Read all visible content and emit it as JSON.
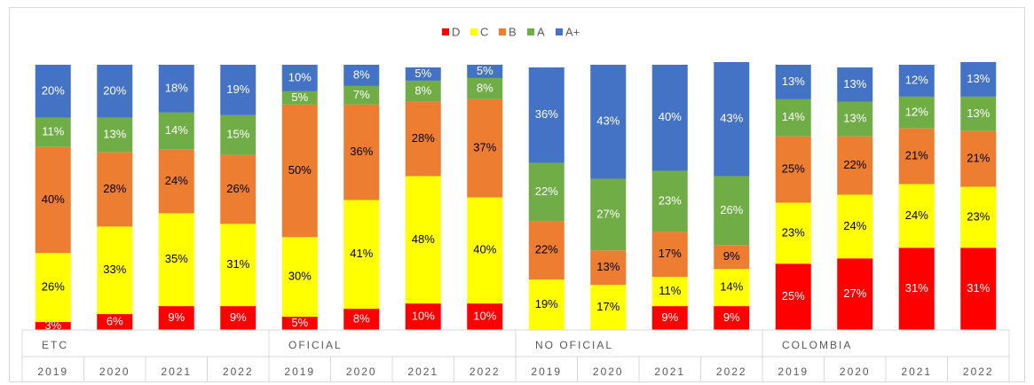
{
  "chart_data": {
    "type": "stacked_bar",
    "categories": [
      "2019",
      "2020",
      "2021",
      "2022",
      "2019",
      "2020",
      "2021",
      "2022",
      "2019",
      "2020",
      "2021",
      "2022",
      "2019",
      "2020",
      "2021",
      "2022"
    ],
    "groups": [
      {
        "label": "ETC",
        "size": 4
      },
      {
        "label": "OFICIAL",
        "size": 4
      },
      {
        "label": "NO OFICIAL",
        "size": 4
      },
      {
        "label": "COLOMBIA",
        "size": 4
      }
    ],
    "ylim": [
      0,
      100
    ],
    "legend": "top",
    "series": [
      {
        "name": "D",
        "color": "#ff0000",
        "label_color": "#ffffff",
        "values": [
          3,
          6,
          9,
          9,
          5,
          8,
          10,
          10,
          0,
          0,
          9,
          9,
          25,
          27,
          31,
          31
        ],
        "value_labels": [
          "3%",
          "6%",
          "9%",
          "9%",
          "5%",
          "8%",
          "10%",
          "10%",
          "0%",
          "0%",
          "9%",
          "9%",
          "25%",
          "27%",
          "31%",
          "31%"
        ]
      },
      {
        "name": "C",
        "color": "#ffff00",
        "label_color": "#000000",
        "values": [
          26,
          33,
          35,
          31,
          30,
          41,
          48,
          40,
          19,
          17,
          11,
          14,
          23,
          24,
          24,
          23
        ],
        "value_labels": [
          "26%",
          "33%",
          "35%",
          "31%",
          "30%",
          "41%",
          "48%",
          "40%",
          "19%",
          "17%",
          "11%",
          "14%",
          "23%",
          "24%",
          "24%",
          "23%"
        ]
      },
      {
        "name": "B",
        "color": "#ed7d31",
        "label_color": "#000000",
        "values": [
          40,
          28,
          24,
          26,
          50,
          36,
          28,
          37,
          22,
          13,
          17,
          9,
          25,
          22,
          21,
          21
        ],
        "value_labels": [
          "40%",
          "28%",
          "24%",
          "26%",
          "50%",
          "36%",
          "28%",
          "37%",
          "22%",
          "13%",
          "17%",
          "9%",
          "25%",
          "22%",
          "21%",
          "21%"
        ]
      },
      {
        "name": "A",
        "color": "#70ad47",
        "label_color": "#ffffff",
        "values": [
          11,
          13,
          14,
          15,
          5,
          7,
          8,
          8,
          22,
          27,
          23,
          26,
          14,
          13,
          12,
          13
        ],
        "value_labels": [
          "11%",
          "13%",
          "14%",
          "15%",
          "5%",
          "7%",
          "8%",
          "8%",
          "22%",
          "27%",
          "23%",
          "26%",
          "14%",
          "13%",
          "12%",
          "13%"
        ]
      },
      {
        "name": "A+",
        "color": "#4472c4",
        "label_color": "#ffffff",
        "values": [
          20,
          20,
          18,
          19,
          10,
          8,
          5,
          5,
          36,
          43,
          40,
          43,
          13,
          13,
          12,
          13
        ],
        "value_labels": [
          "20%",
          "20%",
          "18%",
          "19%",
          "10%",
          "8%",
          "5%",
          "5%",
          "36%",
          "43%",
          "40%",
          "43%",
          "13%",
          "13%",
          "12%",
          "13%"
        ]
      }
    ]
  }
}
